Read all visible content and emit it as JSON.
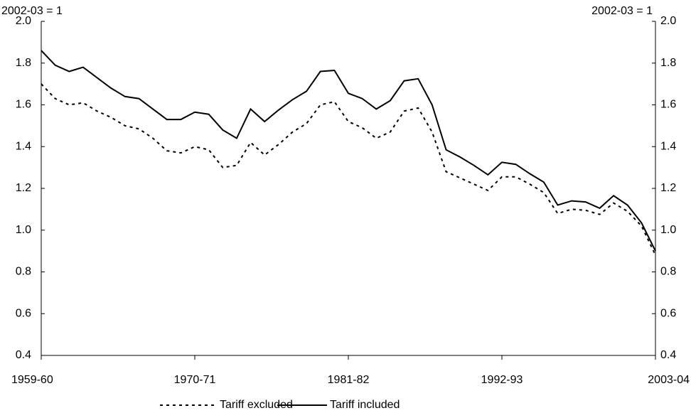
{
  "chart_data": {
    "type": "line",
    "y_unit_label": "2002-03 = 1",
    "y2_unit_label": "2002-03 = 1",
    "categories": [
      "1959-60",
      null,
      null,
      null,
      null,
      null,
      null,
      null,
      null,
      null,
      null,
      "1970-71",
      null,
      null,
      null,
      null,
      null,
      null,
      null,
      null,
      null,
      null,
      "1981-82",
      null,
      null,
      null,
      null,
      null,
      null,
      null,
      null,
      null,
      null,
      "1992-93",
      null,
      null,
      null,
      null,
      null,
      null,
      null,
      null,
      null,
      null,
      "2003-04"
    ],
    "series": [
      {
        "name": "Tariff excluded",
        "color": "#000000",
        "dash": "dotted",
        "values": [
          1.7,
          1.63,
          1.6,
          1.61,
          1.57,
          1.54,
          1.5,
          1.485,
          1.44,
          1.38,
          1.37,
          1.4,
          1.385,
          1.3,
          1.31,
          1.42,
          1.36,
          1.41,
          1.47,
          1.51,
          1.6,
          1.615,
          1.52,
          1.49,
          1.44,
          1.47,
          1.57,
          1.585,
          1.47,
          1.28,
          1.25,
          1.22,
          1.19,
          1.255,
          1.255,
          1.22,
          1.18,
          1.08,
          1.1,
          1.095,
          1.075,
          1.13,
          1.09,
          1.02,
          0.88
        ]
      },
      {
        "name": "Tariff included",
        "color": "#000000",
        "dash": "solid",
        "values": [
          1.86,
          1.79,
          1.76,
          1.78,
          1.73,
          1.68,
          1.64,
          1.63,
          1.58,
          1.53,
          1.53,
          1.565,
          1.555,
          1.48,
          1.44,
          1.58,
          1.52,
          1.575,
          1.625,
          1.665,
          1.76,
          1.765,
          1.655,
          1.63,
          1.58,
          1.62,
          1.715,
          1.725,
          1.6,
          1.385,
          1.35,
          1.31,
          1.265,
          1.325,
          1.315,
          1.27,
          1.23,
          1.12,
          1.14,
          1.135,
          1.105,
          1.165,
          1.12,
          1.035,
          0.9
        ]
      }
    ],
    "ylim": [
      0.4,
      2.0
    ],
    "yticks": [
      {
        "value": 0.4,
        "label": "0.4"
      },
      {
        "value": 0.6,
        "label": "0.6"
      },
      {
        "value": 0.8,
        "label": "0.8"
      },
      {
        "value": 1.0,
        "label": "1.0"
      },
      {
        "value": 1.2,
        "label": "1.2"
      },
      {
        "value": 1.4,
        "label": "1.4"
      },
      {
        "value": 1.6,
        "label": "1.6"
      },
      {
        "value": 1.8,
        "label": "1.8"
      },
      {
        "value": 2.0,
        "label": "2.0"
      }
    ],
    "y2lim": [
      0.4,
      2.0
    ],
    "y2ticks": [
      {
        "value": 0.4,
        "label": "0.4"
      },
      {
        "value": 0.6,
        "label": "0.6"
      },
      {
        "value": 0.8,
        "label": "0.8"
      },
      {
        "value": 1.0,
        "label": "1.0"
      },
      {
        "value": 1.2,
        "label": "1.2"
      },
      {
        "value": 1.4,
        "label": "1.4"
      },
      {
        "value": 1.6,
        "label": "1.6"
      },
      {
        "value": 1.8,
        "label": "1.8"
      },
      {
        "value": 2.0,
        "label": "2.0"
      }
    ],
    "grid": false,
    "legend": "bottom"
  }
}
